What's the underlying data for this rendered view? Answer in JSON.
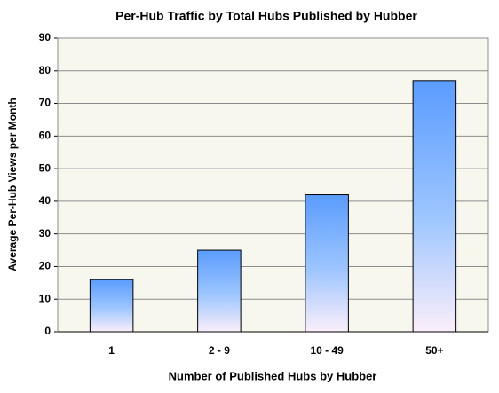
{
  "chart_data": {
    "type": "bar",
    "title": "Per-Hub Traffic by Total Hubs Published by Hubber",
    "x_label": "Number of Published Hubs by Hubber",
    "y_label": "Average Per-Hub Views per Month",
    "categories": [
      "1",
      "2 - 9",
      "10 - 49",
      "50+"
    ],
    "values": [
      16,
      25,
      42,
      77
    ],
    "color": "#5a9cff",
    "ylim": [
      0,
      90
    ],
    "yticks": [
      0,
      10,
      20,
      30,
      40,
      50,
      60,
      70,
      80,
      90
    ],
    "grid": true
  }
}
